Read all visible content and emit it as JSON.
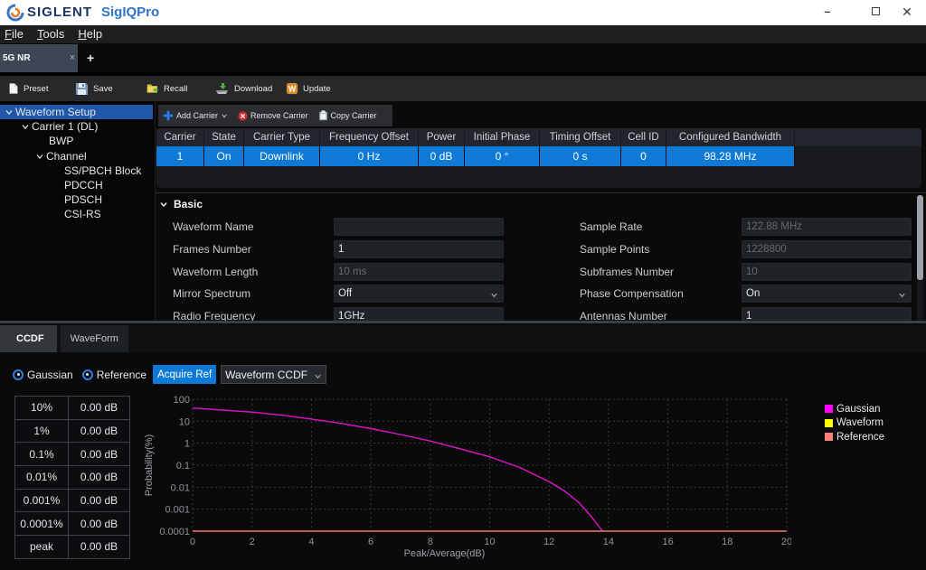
{
  "window": {
    "brand": "SIGLENT",
    "app": "SigIQPro",
    "controls": {
      "minimize_glyph": "–",
      "close_glyph": "✕"
    }
  },
  "menu": {
    "items": [
      {
        "accel": "F",
        "rest": "ile"
      },
      {
        "accel": "T",
        "rest": "ools"
      },
      {
        "accel": "H",
        "rest": "elp"
      }
    ]
  },
  "tabs": {
    "active_label": "5G NR",
    "close_glyph": "×",
    "add_glyph": "+"
  },
  "toolbar": {
    "items": [
      {
        "label": "Preset",
        "icon": "document-icon"
      },
      {
        "label": "Save",
        "icon": "floppy-icon"
      },
      {
        "label": "Recall",
        "icon": "folder-icon"
      },
      {
        "label": "Download",
        "icon": "download-icon"
      },
      {
        "label": "Update",
        "icon": "update-icon"
      }
    ]
  },
  "tree": {
    "items": [
      {
        "label": "Waveform Setup"
      },
      {
        "label": "Carrier 1 (DL)"
      },
      {
        "label": "BWP"
      },
      {
        "label": "Channel"
      },
      {
        "label": "SS/PBCH Block"
      },
      {
        "label": "PDCCH"
      },
      {
        "label": "PDSCH"
      },
      {
        "label": "CSI-RS"
      }
    ]
  },
  "carrier": {
    "actions": [
      {
        "label": "Add Carrier",
        "icon": "plus-icon"
      },
      {
        "label": "Remove Carrier",
        "icon": "remove-circle-icon"
      },
      {
        "label": "Copy Carrier",
        "icon": "clipboard-icon"
      }
    ],
    "table": {
      "headers": [
        "Carrier",
        "State",
        "Carrier Type",
        "Frequency Offset",
        "Power",
        "Initial Phase",
        "Timing Offset",
        "Cell ID",
        "Configured Bandwidth"
      ],
      "row": [
        "1",
        "On",
        "Downlink",
        "0 Hz",
        "0 dB",
        "0 °",
        "0 s",
        "0",
        "98.28 MHz"
      ]
    }
  },
  "basic": {
    "title": "Basic",
    "left": [
      {
        "label": "Waveform Name",
        "value": ""
      },
      {
        "label": "Frames Number",
        "value": "1"
      },
      {
        "label": "Waveform Length",
        "value": "10 ms"
      },
      {
        "label": "Mirror Spectrum",
        "value": "Off"
      },
      {
        "label": "Radio Frequency",
        "value": "1GHz"
      }
    ],
    "right": [
      {
        "label": "Sample Rate",
        "value": "122.88 MHz"
      },
      {
        "label": "Sample Points",
        "value": "1228800"
      },
      {
        "label": "Subframes Number",
        "value": "10"
      },
      {
        "label": "Phase Compensation",
        "value": "On"
      },
      {
        "label": "Antennas Number",
        "value": "1"
      }
    ]
  },
  "bottom": {
    "tabs": [
      {
        "label": "CCDF"
      },
      {
        "label": "WaveForm"
      }
    ],
    "controls": {
      "radios": [
        {
          "label": "Gaussian"
        },
        {
          "label": "Reference"
        }
      ],
      "acquire_button": "Acquire Ref",
      "ccdf_select": "Waveform CCDF"
    },
    "stats_rows": [
      [
        "10%",
        "0.00 dB"
      ],
      [
        "1%",
        "0.00 dB"
      ],
      [
        "0.1%",
        "0.00 dB"
      ],
      [
        "0.01%",
        "0.00 dB"
      ],
      [
        "0.001%",
        "0.00 dB"
      ],
      [
        "0.0001%",
        "0.00 dB"
      ],
      [
        "peak",
        "0.00 dB"
      ]
    ]
  },
  "chart_data": {
    "type": "line",
    "title": "",
    "xlabel": "Peak/Average(dB)",
    "ylabel": "Probability(%)",
    "xlim": [
      0,
      20
    ],
    "ylim_log10": [
      -4,
      2
    ],
    "x_ticks": [
      0,
      2,
      4,
      6,
      8,
      10,
      12,
      14,
      16,
      18,
      20
    ],
    "y_ticks": [
      100,
      10,
      1,
      0.1,
      0.01,
      0.001,
      0.0001
    ],
    "grid": "dashed",
    "legend_position": "right",
    "series": [
      {
        "name": "Gaussian",
        "color": "#e012c8",
        "x": [
          0,
          1,
          2,
          3,
          4,
          5,
          6,
          7,
          8,
          9,
          10,
          11,
          12,
          12.5,
          13,
          13.4,
          13.8
        ],
        "y": [
          40,
          32,
          26,
          19,
          12.6,
          8,
          4.6,
          2.5,
          1.26,
          0.56,
          0.24,
          0.08,
          0.018,
          0.007,
          0.002,
          0.0005,
          0.0001
        ]
      },
      {
        "name": "Waveform",
        "color": "#ffff00",
        "x": [],
        "y": []
      },
      {
        "name": "Reference",
        "color": "#ef7b6e",
        "x": [
          0,
          20
        ],
        "y": [
          0.0001,
          0.0001
        ]
      }
    ],
    "legend": [
      {
        "label": "Gaussian",
        "color": "#ff00ff"
      },
      {
        "label": "Waveform",
        "color": "#ffff00"
      },
      {
        "label": "Reference",
        "color": "#fa8072"
      }
    ]
  }
}
